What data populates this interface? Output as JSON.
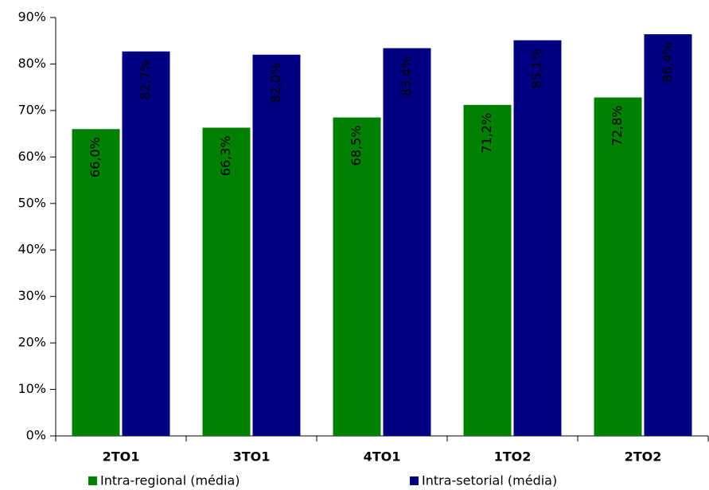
{
  "chart_data": {
    "type": "bar",
    "categories": [
      "2TO1",
      "3TO1",
      "4TO1",
      "1TO2",
      "2TO2"
    ],
    "series": [
      {
        "name": "Intra-regional (média)",
        "color": "#008000",
        "values": [
          66.0,
          66.3,
          68.5,
          71.2,
          72.8
        ],
        "value_labels": [
          "66,0%",
          "66,3%",
          "68,5%",
          "71,2%",
          "72,8%"
        ]
      },
      {
        "name": "Intra-setorial (média)",
        "color": "#000080",
        "values": [
          82.7,
          82.0,
          83.4,
          85.1,
          86.4
        ],
        "value_labels": [
          "82,7%",
          "82,0%",
          "83,4%",
          "85,1%",
          "86,4%"
        ]
      }
    ],
    "ylim": [
      0,
      90
    ],
    "yticks": [
      {
        "value": 0,
        "label": "0%"
      },
      {
        "value": 10,
        "label": "10%"
      },
      {
        "value": 20,
        "label": "20%"
      },
      {
        "value": 30,
        "label": "30%"
      },
      {
        "value": 40,
        "label": "40%"
      },
      {
        "value": 50,
        "label": "50%"
      },
      {
        "value": 60,
        "label": "60%"
      },
      {
        "value": 70,
        "label": "70%"
      },
      {
        "value": 80,
        "label": "80%"
      },
      {
        "value": 90,
        "label": "90%"
      }
    ],
    "grid": false
  }
}
